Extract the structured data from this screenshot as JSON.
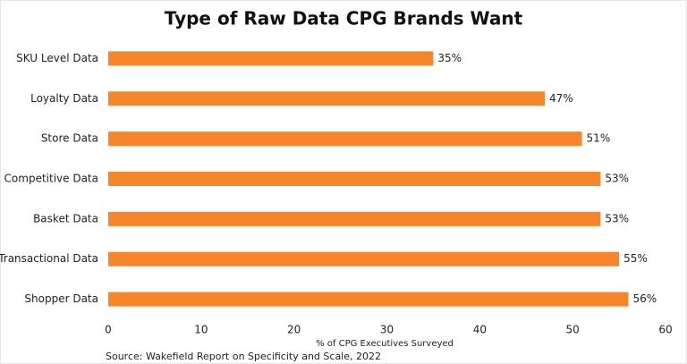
{
  "chart_data": {
    "type": "bar",
    "orientation": "horizontal",
    "title": "Type of Raw Data CPG Brands Want",
    "categories": [
      "SKU Level Data",
      "Loyalty Data",
      "Store Data",
      "Competitive Data",
      "Basket Data",
      "Transactional Data",
      "Shopper Data"
    ],
    "values": [
      35,
      47,
      51,
      53,
      53,
      55,
      56
    ],
    "value_labels": [
      "35%",
      "47%",
      "51%",
      "53%",
      "53%",
      "55%",
      "56%"
    ],
    "color": "#f7862a",
    "xlim": [
      0,
      60
    ],
    "xticks": [
      0,
      10,
      20,
      30,
      40,
      50,
      60
    ],
    "x_label": "% of CPG Executives Surveyed",
    "source": "Source: Wakefield Report on Specificity and Scale, 2022",
    "grid": false
  }
}
